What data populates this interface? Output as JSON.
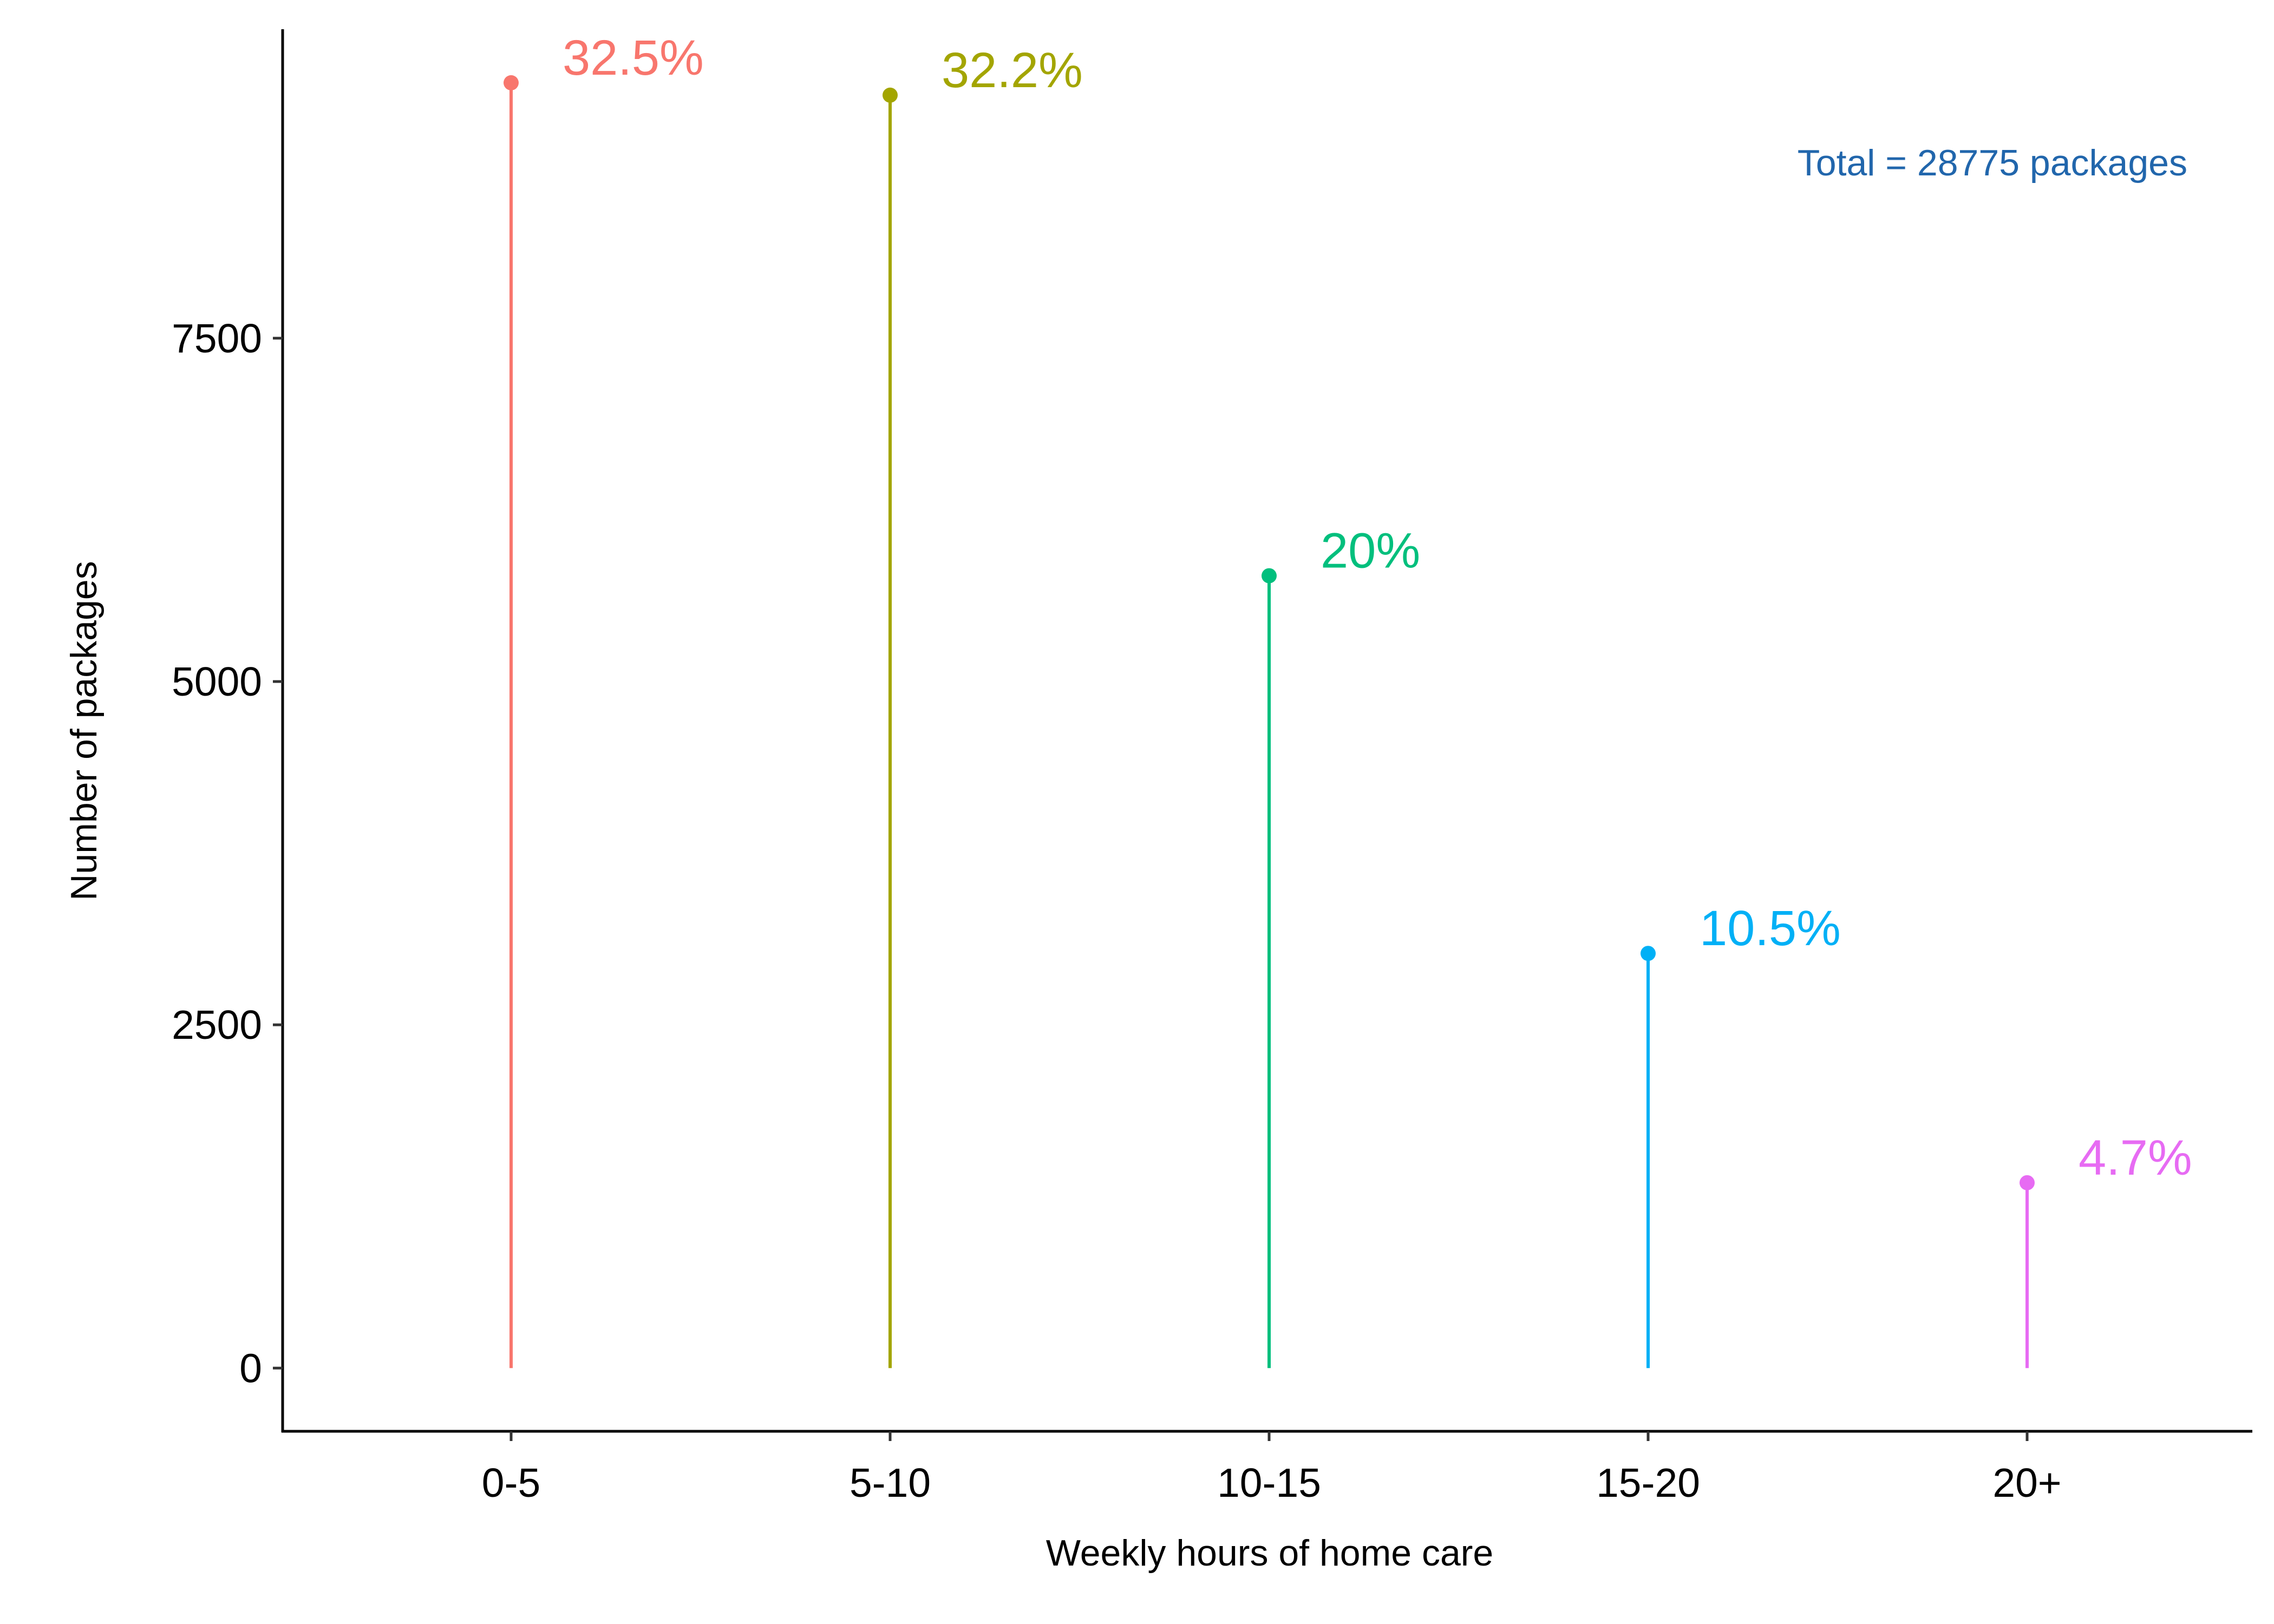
{
  "chart_data": {
    "type": "lollipop",
    "xlabel": "Weekly hours of home care",
    "ylabel": "Number of packages",
    "categories": [
      "0-5",
      "5-10",
      "10-15",
      "15-20",
      "20+"
    ],
    "values": [
      9360,
      9270,
      5770,
      3020,
      1350
    ],
    "data_labels": [
      "32.5%",
      "32.2%",
      "20%",
      "10.5%",
      "4.7%"
    ],
    "colors": [
      "#F8766D",
      "#A3A500",
      "#00BF7D",
      "#00B0F6",
      "#E76BF3"
    ],
    "yticks": [
      0,
      2500,
      5000,
      7500
    ],
    "ytick_labels": [
      "0",
      "2500",
      "5000",
      "7500"
    ],
    "ylim": [
      -460,
      9750
    ],
    "grid": false,
    "annotation": {
      "text": "Total = 28775 packages",
      "color": "#2166AC"
    }
  }
}
